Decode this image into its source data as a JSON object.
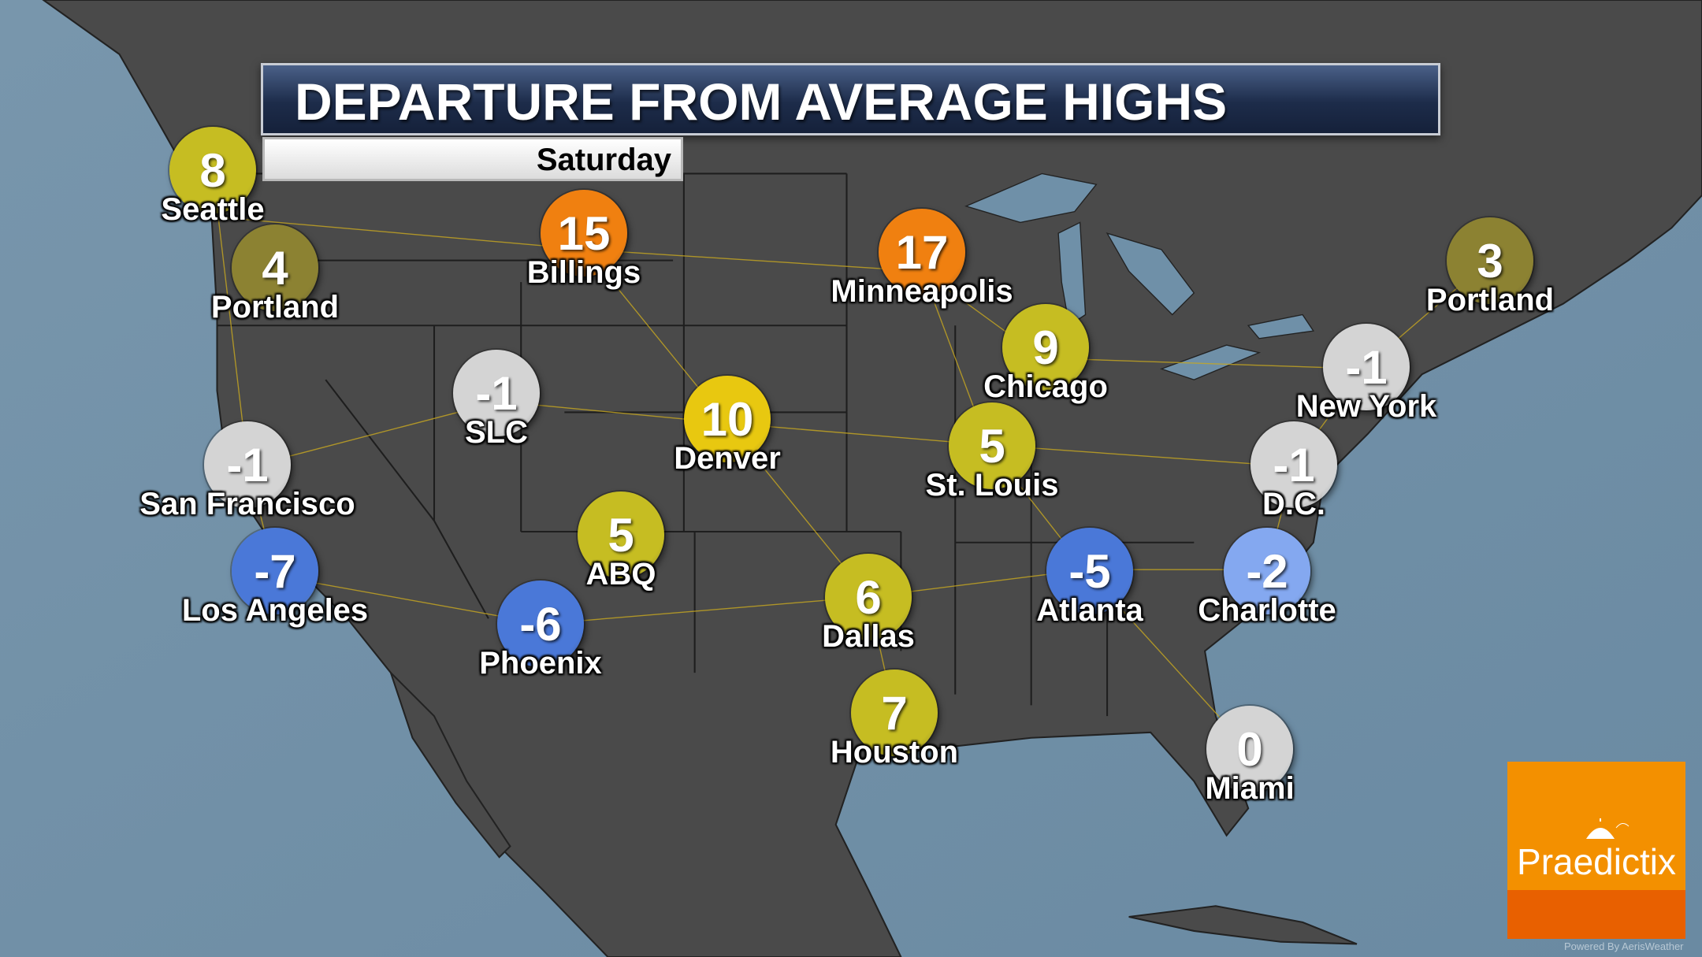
{
  "title": "DEPARTURE FROM AVERAGE HIGHS",
  "day": "Saturday",
  "colors": {
    "ocean": "#6f90a8",
    "land": "#4a4a4a",
    "roads": "#c8a820",
    "warm_orange": "#f08010",
    "warm_yellow": "#e8c810",
    "warm_yellowgreen": "#c6bd22",
    "warm_olive": "#8c8232",
    "neutral_gray": "#d4d4d4",
    "cool_blue": "#4a78d8",
    "cool_lightblue": "#84a8f0"
  },
  "cities": [
    {
      "name": "Seattle",
      "value": "8",
      "color": "#c6bd22"
    },
    {
      "name": "Portland",
      "value": "4",
      "color": "#8c8232"
    },
    {
      "name": "Billings",
      "value": "15",
      "color": "#f08010"
    },
    {
      "name": "Minneapolis",
      "value": "17",
      "color": "#f08010"
    },
    {
      "name": "Portland",
      "value": "3",
      "color": "#8c8232"
    },
    {
      "name": "Chicago",
      "value": "9",
      "color": "#c6bd22"
    },
    {
      "name": "New York",
      "value": "-1",
      "color": "#d4d4d4"
    },
    {
      "name": "SLC",
      "value": "-1",
      "color": "#d4d4d4"
    },
    {
      "name": "Denver",
      "value": "10",
      "color": "#e8c810"
    },
    {
      "name": "St. Louis",
      "value": "5",
      "color": "#c6bd22"
    },
    {
      "name": "San Francisco",
      "value": "-1",
      "color": "#d4d4d4"
    },
    {
      "name": "D.C.",
      "value": "-1",
      "color": "#d4d4d4"
    },
    {
      "name": "ABQ",
      "value": "5",
      "color": "#c6bd22"
    },
    {
      "name": "Los Angeles",
      "value": "-7",
      "color": "#4a78d8"
    },
    {
      "name": "Atlanta",
      "value": "-5",
      "color": "#4a78d8"
    },
    {
      "name": "Charlotte",
      "value": "-2",
      "color": "#84a8f0"
    },
    {
      "name": "Dallas",
      "value": "6",
      "color": "#c6bd22"
    },
    {
      "name": "Phoenix",
      "value": "-6",
      "color": "#4a78d8"
    },
    {
      "name": "Houston",
      "value": "7",
      "color": "#c6bd22"
    },
    {
      "name": "Miami",
      "value": "0",
      "color": "#d4d4d4"
    }
  ],
  "logo": {
    "text": "Praedictix",
    "icon": "umbrella-icon"
  },
  "credit": "Powered By AerisWeather"
}
